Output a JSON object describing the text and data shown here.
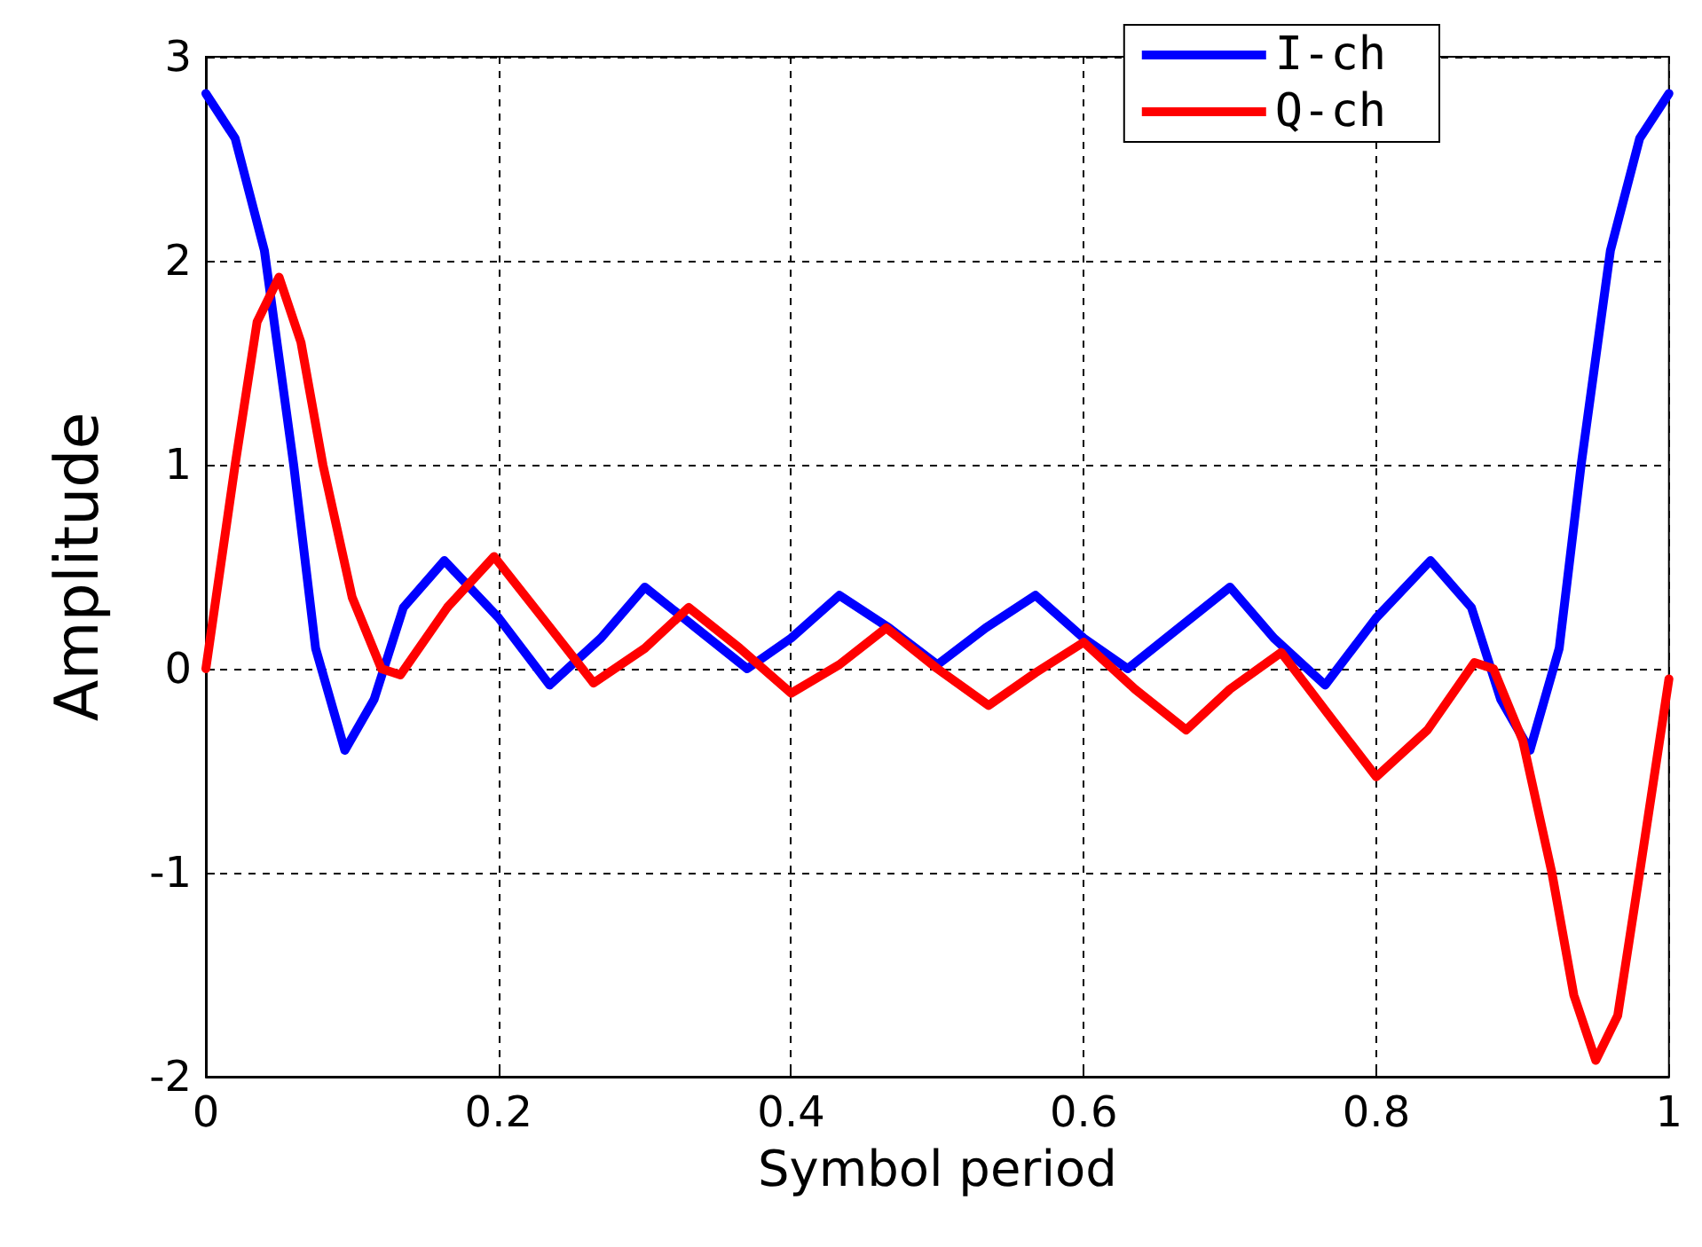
{
  "chart_data": {
    "type": "line",
    "xlabel": "Symbol period",
    "ylabel": "Amplitude",
    "xlim": [
      0,
      1
    ],
    "ylim": [
      -2,
      3
    ],
    "xticks": [
      0,
      0.2,
      0.4,
      0.6,
      0.8,
      {
        "value": 1,
        "label": "1"
      }
    ],
    "yticks": [
      -2,
      -1,
      0,
      1,
      2,
      3
    ],
    "grid": true,
    "legend": "top right",
    "marker": "none",
    "line_style": "solid",
    "series": [
      {
        "name": "I-ch",
        "color": "#0000ff",
        "x": [
          0,
          0.02,
          0.04,
          0.06,
          0.075,
          0.095,
          0.115,
          0.135,
          0.163,
          0.2,
          0.235,
          0.27,
          0.3,
          0.335,
          0.37,
          0.4,
          0.433,
          0.467,
          0.5,
          0.533,
          0.567,
          0.6,
          0.63,
          0.665,
          0.7,
          0.73,
          0.765,
          0.8,
          0.837,
          0.865,
          0.885,
          0.905,
          0.925,
          0.94,
          0.96,
          0.98,
          1
        ],
        "values": [
          2.82,
          2.6,
          2.05,
          1.0,
          0.1,
          -0.4,
          -0.15,
          0.3,
          0.53,
          0.25,
          -0.08,
          0.15,
          0.4,
          0.2,
          0.0,
          0.15,
          0.36,
          0.2,
          0.02,
          0.2,
          0.36,
          0.15,
          0.0,
          0.2,
          0.4,
          0.15,
          -0.08,
          0.25,
          0.53,
          0.3,
          -0.15,
          -0.4,
          0.1,
          1.0,
          2.05,
          2.6,
          2.82
        ]
      },
      {
        "name": "Q-ch",
        "color": "#ff0000",
        "x": [
          0,
          0.02,
          0.035,
          0.05,
          0.065,
          0.08,
          0.1,
          0.12,
          0.133,
          0.165,
          0.197,
          0.23,
          0.265,
          0.3,
          0.33,
          0.365,
          0.4,
          0.433,
          0.465,
          0.5,
          0.535,
          0.567,
          0.6,
          0.635,
          0.67,
          0.7,
          0.735,
          0.77,
          0.8,
          0.835,
          0.867,
          0.88,
          0.9,
          0.92,
          0.935,
          0.95,
          0.965,
          0.98,
          1
        ],
        "values": [
          0,
          1.0,
          1.7,
          1.92,
          1.6,
          1.0,
          0.35,
          0.0,
          -0.03,
          0.3,
          0.55,
          0.25,
          -0.07,
          0.1,
          0.3,
          0.1,
          -0.12,
          0.02,
          0.2,
          0.0,
          -0.18,
          -0.02,
          0.13,
          -0.1,
          -0.3,
          -0.1,
          0.08,
          -0.25,
          -0.53,
          -0.3,
          0.03,
          0.0,
          -0.35,
          -1.0,
          -1.6,
          -1.92,
          -1.7,
          -1.0,
          -0.05
        ]
      }
    ]
  }
}
